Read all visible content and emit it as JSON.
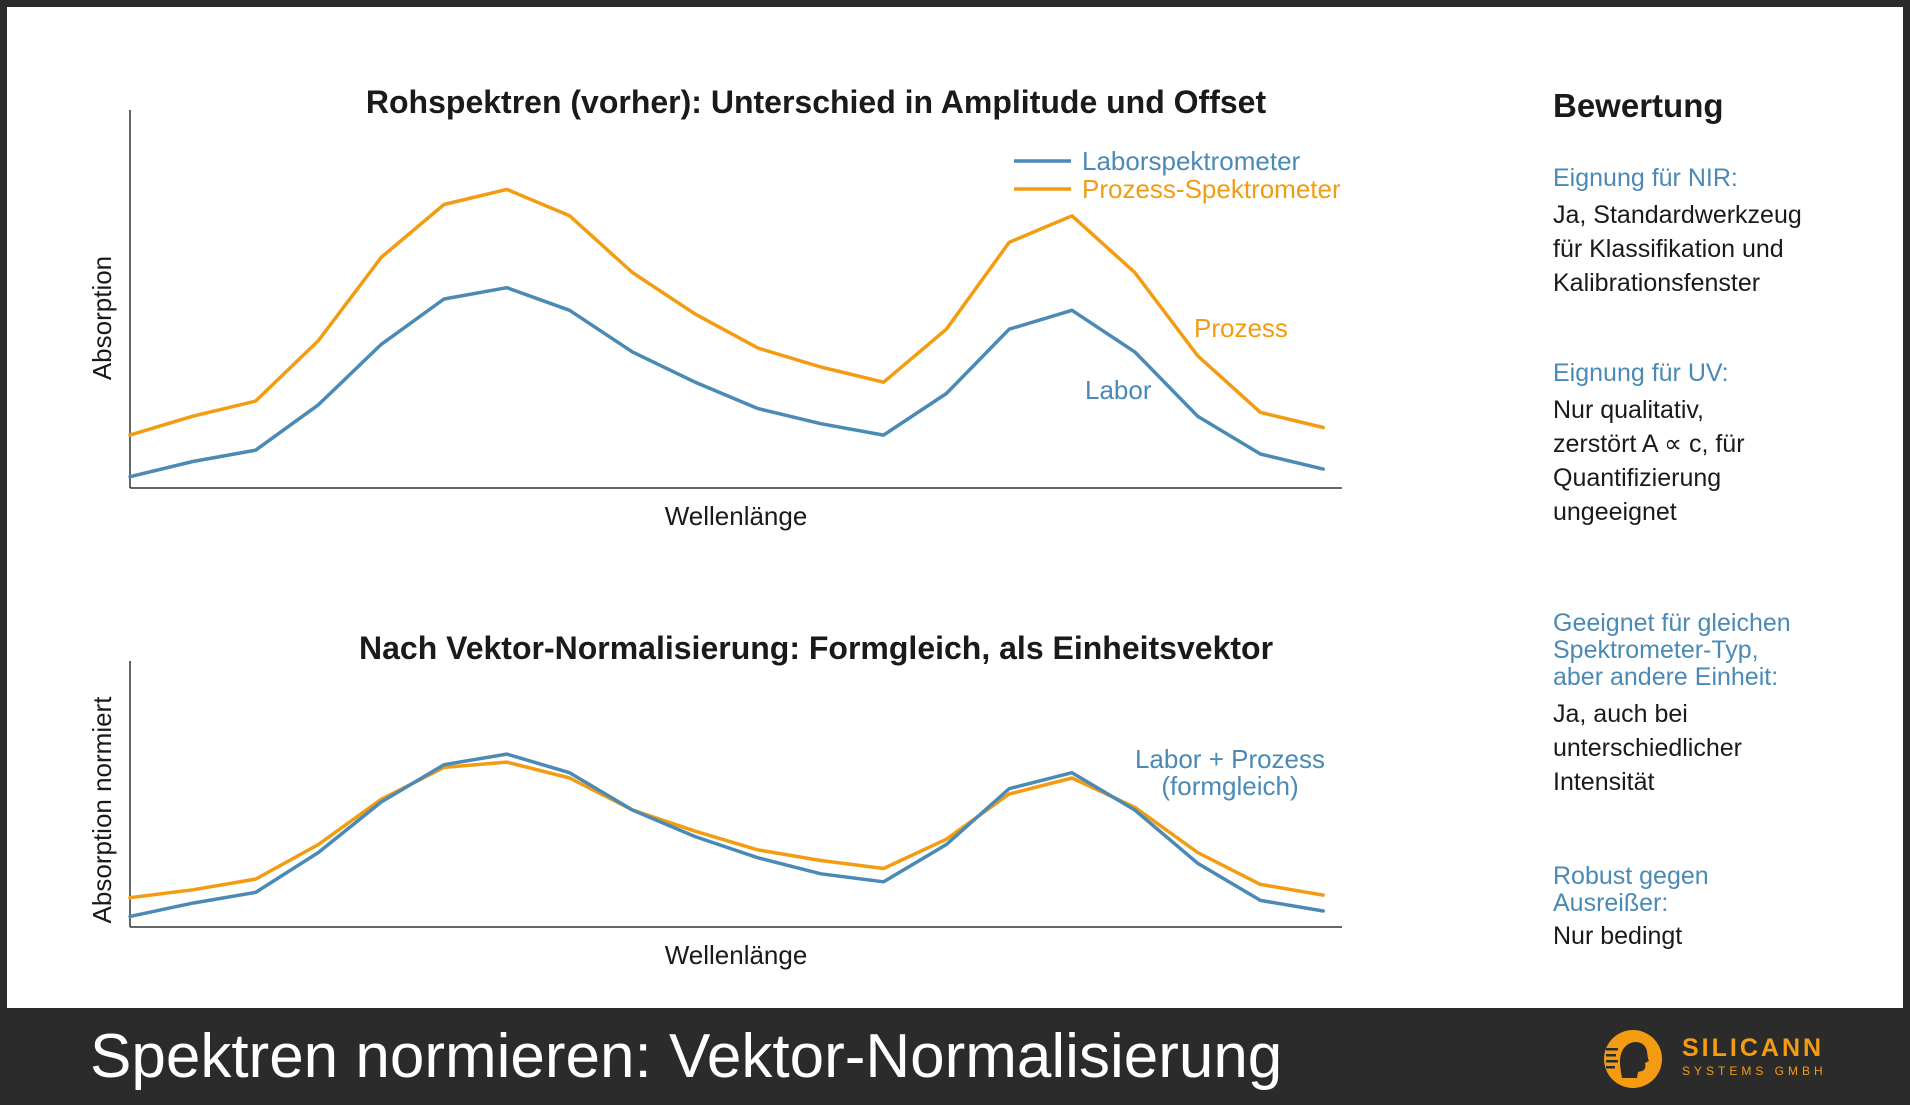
{
  "footer": {
    "title": "Spektren normieren: Vektor-Normalisierung",
    "logo_name": "SILICANN",
    "logo_sub": "SYSTEMS GMBH"
  },
  "colors": {
    "labor": "#4a8ab5",
    "prozess": "#f39c12",
    "background": "#ffffff",
    "footer": "#2b2b2b"
  },
  "chart_data": [
    {
      "type": "line",
      "title": "Rohspektren (vorher): Unterschied in Amplitude und Offset",
      "xlabel": "Wellenlänge",
      "ylabel": "Absorption",
      "x": [
        0,
        1,
        2,
        3,
        4,
        5,
        6,
        7,
        8,
        9,
        10,
        11,
        12,
        13,
        14,
        15,
        16,
        17,
        18,
        19
      ],
      "xlim": [
        0,
        19.3
      ],
      "ylim": [
        0,
        1
      ],
      "grid": false,
      "legend": "top-right",
      "series": [
        {
          "name": "Laborspektrometer",
          "color": "#4a8ab5",
          "values": [
            0.03,
            0.07,
            0.1,
            0.22,
            0.38,
            0.5,
            0.53,
            0.47,
            0.36,
            0.28,
            0.21,
            0.17,
            0.14,
            0.25,
            0.42,
            0.47,
            0.36,
            0.19,
            0.09,
            0.05
          ]
        },
        {
          "name": "Prozess-Spektrometer",
          "color": "#f39c12",
          "values": [
            0.14,
            0.19,
            0.23,
            0.39,
            0.61,
            0.75,
            0.79,
            0.72,
            0.57,
            0.46,
            0.37,
            0.32,
            0.28,
            0.42,
            0.65,
            0.72,
            0.57,
            0.35,
            0.2,
            0.16
          ]
        }
      ],
      "annotations": [
        {
          "text": "Prozess",
          "series": "Prozess-Spektrometer"
        },
        {
          "text": "Labor",
          "series": "Laborspektrometer"
        }
      ]
    },
    {
      "type": "line",
      "title": "Nach Vektor-Normalisierung: Formgleich, als Einheitsvektor",
      "xlabel": "Wellenlänge",
      "ylabel": "Absorption normiert",
      "x": [
        0,
        1,
        2,
        3,
        4,
        5,
        6,
        7,
        8,
        9,
        10,
        11,
        12,
        13,
        14,
        15,
        16,
        17,
        18,
        19
      ],
      "xlim": [
        0,
        19.3
      ],
      "ylim": [
        0,
        1
      ],
      "grid": false,
      "legend": "none",
      "series": [
        {
          "name": "Laborspektrometer",
          "color": "#4a8ab5",
          "values": [
            0.04,
            0.09,
            0.13,
            0.28,
            0.47,
            0.61,
            0.65,
            0.58,
            0.44,
            0.34,
            0.26,
            0.2,
            0.17,
            0.31,
            0.52,
            0.58,
            0.44,
            0.24,
            0.1,
            0.06
          ]
        },
        {
          "name": "Prozess-Spektrometer",
          "color": "#f39c12",
          "values": [
            0.11,
            0.14,
            0.18,
            0.31,
            0.48,
            0.6,
            0.62,
            0.56,
            0.44,
            0.36,
            0.29,
            0.25,
            0.22,
            0.33,
            0.5,
            0.56,
            0.45,
            0.28,
            0.16,
            0.12
          ]
        }
      ],
      "annotations": [
        {
          "text": "Labor + Prozess",
          "series": ""
        },
        {
          "text": "(formgleich)",
          "series": ""
        }
      ]
    }
  ],
  "sidebar": {
    "title": "Bewertung",
    "criteria": [
      {
        "label_lines": [
          "Eignung für NIR:"
        ],
        "value_lines": [
          "Ja, Standardwerkzeug",
          "für Klassifikation und",
          "Kalibrationsfenster"
        ]
      },
      {
        "label_lines": [
          "Eignung für UV:"
        ],
        "value_lines": [
          "Nur qualitativ,",
          "zerstört A ∝ c, für",
          "Quantifizierung",
          "ungeeignet"
        ]
      },
      {
        "label_lines": [
          "Geeignet für gleichen",
          "Spektrometer-Typ,",
          "aber andere Einheit:"
        ],
        "value_lines": [
          "Ja, auch bei",
          "unterschiedlicher",
          "Intensität"
        ]
      },
      {
        "label_lines": [
          "Robust gegen",
          "Ausreißer:"
        ],
        "value_lines": [
          "Nur bedingt"
        ]
      }
    ]
  }
}
